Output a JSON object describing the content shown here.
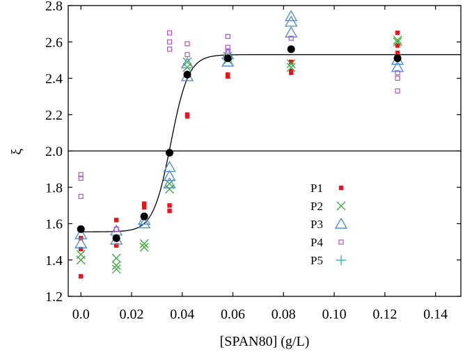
{
  "chart_data": {
    "type": "scatter",
    "title": "",
    "xlabel": "[SPAN80] (g/L)",
    "ylabel": "ξ",
    "xlim": [
      -0.005,
      0.15
    ],
    "ylim": [
      1.2,
      2.8
    ],
    "xticks": [
      0.0,
      0.02,
      0.04,
      0.06,
      0.08,
      0.1,
      0.12,
      0.14
    ],
    "xtick_labels": [
      "0.0",
      "0.02",
      "0.04",
      "0.06",
      "0.08",
      "0.10",
      "0.12",
      "0.14"
    ],
    "yticks": [
      1.2,
      1.4,
      1.6,
      1.8,
      2.0,
      2.2,
      2.4,
      2.6,
      2.8
    ],
    "ytick_labels": [
      "1.2",
      "1.4",
      "1.6",
      "1.8",
      "2.0",
      "2.2",
      "2.4",
      "2.6",
      "2.8"
    ],
    "grid": false,
    "legend_position": "center-right",
    "reference_line": {
      "y": 2.0
    },
    "fit_curve": {
      "type": "sigmoid",
      "low": 1.555,
      "high": 2.53,
      "center": 0.0355,
      "width": 0.0035
    },
    "series": [
      {
        "name": "P1",
        "marker": "filled-square",
        "color": "#e8141c",
        "points": [
          [
            0.0,
            1.31
          ],
          [
            0.0,
            1.46
          ],
          [
            0.0,
            1.52
          ],
          [
            0.014,
            1.62
          ],
          [
            0.014,
            1.52
          ],
          [
            0.014,
            1.48
          ],
          [
            0.025,
            1.71
          ],
          [
            0.025,
            1.69
          ],
          [
            0.035,
            1.7
          ],
          [
            0.035,
            1.67
          ],
          [
            0.042,
            2.2
          ],
          [
            0.042,
            2.19
          ],
          [
            0.058,
            2.42
          ],
          [
            0.058,
            2.41
          ],
          [
            0.083,
            2.49
          ],
          [
            0.083,
            2.44
          ],
          [
            0.083,
            2.43
          ],
          [
            0.125,
            2.65
          ],
          [
            0.125,
            2.58
          ],
          [
            0.125,
            2.54
          ]
        ]
      },
      {
        "name": "P2",
        "marker": "x",
        "color": "#3fab3f",
        "points": [
          [
            0.0,
            1.43
          ],
          [
            0.0,
            1.4
          ],
          [
            0.014,
            1.41
          ],
          [
            0.014,
            1.37
          ],
          [
            0.014,
            1.35
          ],
          [
            0.025,
            1.49
          ],
          [
            0.025,
            1.47
          ],
          [
            0.035,
            1.82
          ],
          [
            0.035,
            1.79
          ],
          [
            0.042,
            2.49
          ],
          [
            0.042,
            2.46
          ],
          [
            0.058,
            2.52
          ],
          [
            0.058,
            2.5
          ],
          [
            0.083,
            2.48
          ],
          [
            0.083,
            2.46
          ],
          [
            0.125,
            2.61
          ],
          [
            0.125,
            2.6
          ]
        ]
      },
      {
        "name": "P3",
        "marker": "open-triangle",
        "color": "#4f8fd1",
        "points": [
          [
            0.0,
            1.54
          ],
          [
            0.0,
            1.49
          ],
          [
            0.014,
            1.56
          ],
          [
            0.014,
            1.51
          ],
          [
            0.025,
            1.62
          ],
          [
            0.025,
            1.6
          ],
          [
            0.035,
            1.91
          ],
          [
            0.035,
            1.86
          ],
          [
            0.035,
            1.82
          ],
          [
            0.042,
            2.48
          ],
          [
            0.042,
            2.41
          ],
          [
            0.058,
            2.53
          ],
          [
            0.058,
            2.49
          ],
          [
            0.083,
            2.74
          ],
          [
            0.083,
            2.71
          ],
          [
            0.083,
            2.65
          ],
          [
            0.125,
            2.5
          ],
          [
            0.125,
            2.46
          ]
        ]
      },
      {
        "name": "P4",
        "marker": "open-square",
        "color": "#b44fc4",
        "points": [
          [
            0.0,
            1.87
          ],
          [
            0.0,
            1.85
          ],
          [
            0.0,
            1.75
          ],
          [
            0.014,
            1.57
          ],
          [
            0.035,
            2.65
          ],
          [
            0.035,
            2.6
          ],
          [
            0.035,
            2.56
          ],
          [
            0.042,
            2.59
          ],
          [
            0.042,
            2.53
          ],
          [
            0.058,
            2.63
          ],
          [
            0.058,
            2.57
          ],
          [
            0.058,
            2.55
          ],
          [
            0.083,
            2.62
          ],
          [
            0.125,
            2.43
          ],
          [
            0.125,
            2.4
          ],
          [
            0.125,
            2.33
          ]
        ]
      },
      {
        "name": "P5",
        "marker": "plus",
        "color": "#2bb8c7",
        "points": []
      },
      {
        "name": "",
        "marker": "filled-circle",
        "color": "#000000",
        "points": [
          [
            0.0,
            1.57
          ],
          [
            0.014,
            1.52
          ],
          [
            0.025,
            1.64
          ],
          [
            0.035,
            1.99
          ],
          [
            0.042,
            2.42
          ],
          [
            0.058,
            2.51
          ],
          [
            0.083,
            2.56
          ],
          [
            0.125,
            2.51
          ]
        ]
      }
    ]
  }
}
